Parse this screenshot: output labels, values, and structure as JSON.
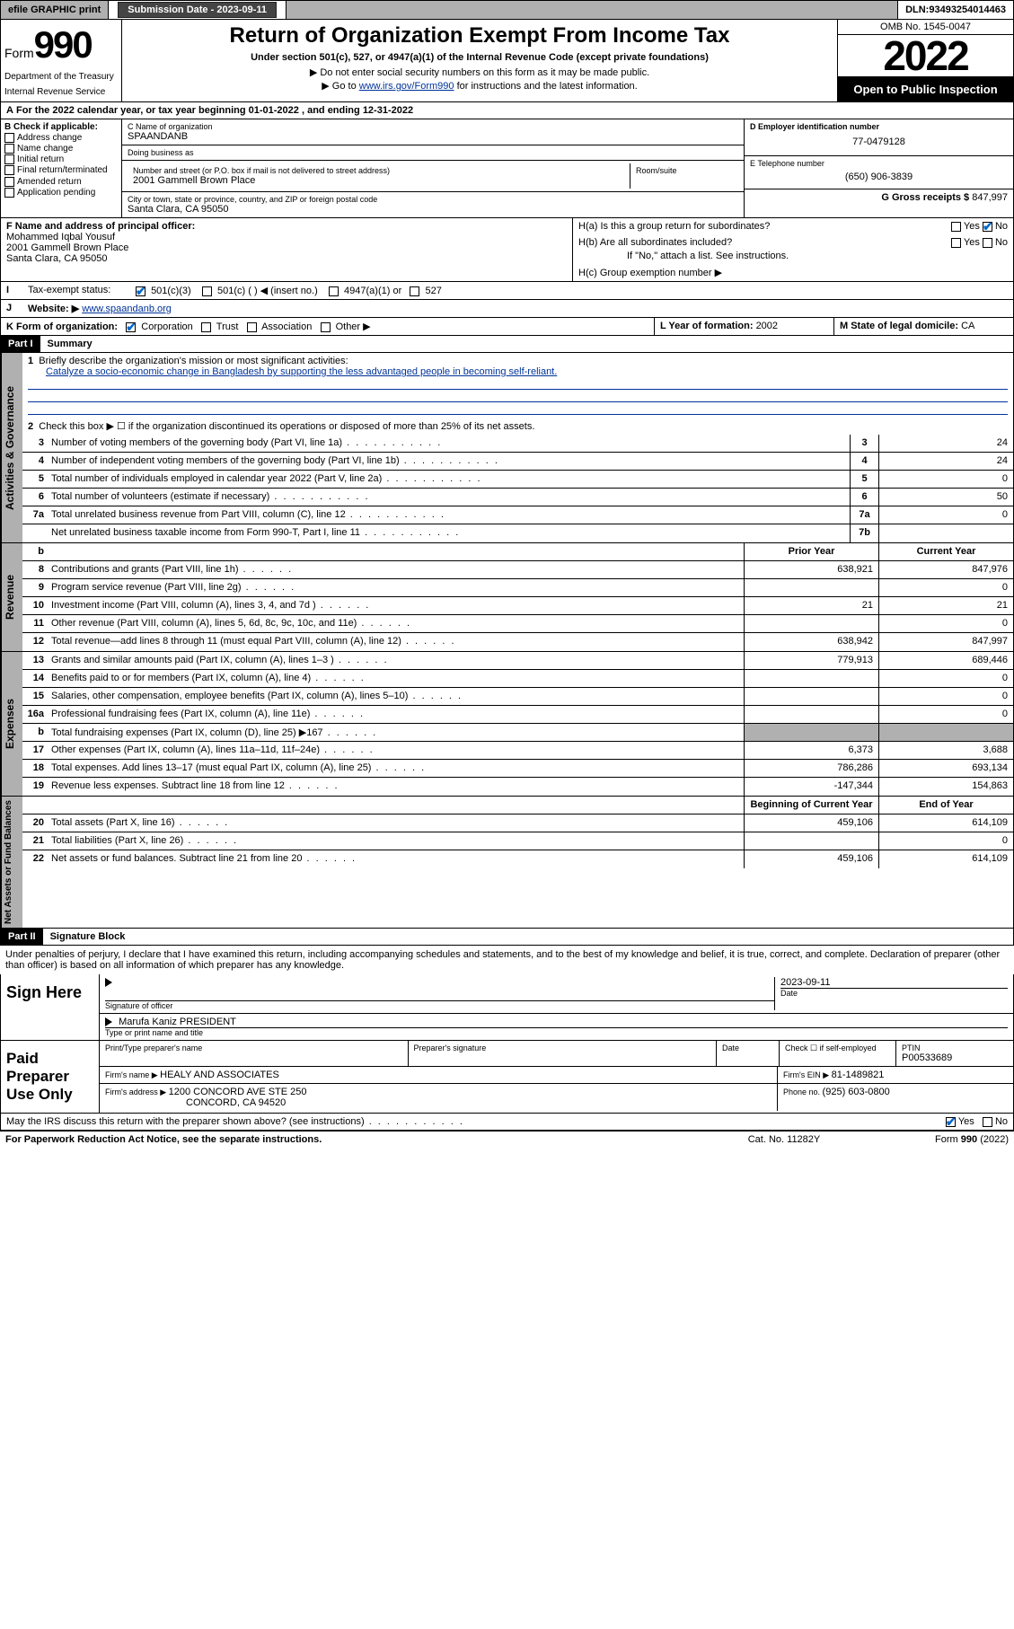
{
  "topbar": {
    "efile": "efile GRAPHIC print",
    "subdate_label": "Submission Date - ",
    "subdate": "2023-09-11",
    "dln_label": "DLN: ",
    "dln": "93493254014463"
  },
  "header": {
    "form_label": "Form",
    "form_num": "990",
    "dept": "Department of the Treasury",
    "irs": "Internal Revenue Service",
    "title": "Return of Organization Exempt From Income Tax",
    "sub1": "Under section 501(c), 527, or 4947(a)(1) of the Internal Revenue Code (except private foundations)",
    "sub2": "▶ Do not enter social security numbers on this form as it may be made public.",
    "sub3_pre": "▶ Go to ",
    "sub3_link": "www.irs.gov/Form990",
    "sub3_post": " for instructions and the latest information.",
    "omb": "OMB No. 1545-0047",
    "year": "2022",
    "inspect": "Open to Public Inspection"
  },
  "line_a": {
    "text": "For the 2022 calendar year, or tax year beginning ",
    "begin": "01-01-2022",
    "mid": " , and ending ",
    "end": "12-31-2022"
  },
  "col_b": {
    "header": "B Check if applicable:",
    "items": [
      "Address change",
      "Name change",
      "Initial return",
      "Final return/terminated",
      "Amended return",
      "Application pending"
    ]
  },
  "org": {
    "name_label": "C Name of organization",
    "name": "SPAANDANB",
    "dba_label": "Doing business as",
    "dba": "",
    "addr_label": "Number and street (or P.O. box if mail is not delivered to street address)",
    "room_label": "Room/suite",
    "addr": "2001 Gammell Brown Place",
    "city_label": "City or town, state or province, country, and ZIP or foreign postal code",
    "city": "Santa Clara, CA  95050"
  },
  "right": {
    "ein_label": "D Employer identification number",
    "ein": "77-0479128",
    "tel_label": "E Telephone number",
    "tel": "(650) 906-3839",
    "gross_label": "G Gross receipts $ ",
    "gross": "847,997"
  },
  "officer": {
    "label": "F  Name and address of principal officer:",
    "name": "Mohammed Iqbal Yousuf",
    "addr1": "2001 Gammell Brown Place",
    "addr2": "Santa Clara, CA  95050"
  },
  "h": {
    "a_label": "H(a)  Is this a group return for subordinates?",
    "b_label": "H(b)  Are all subordinates included?",
    "note": "If \"No,\" attach a list. See instructions.",
    "c_label": "H(c)  Group exemption number ▶",
    "yes": "Yes",
    "no": "No"
  },
  "tax_status": {
    "label": "Tax-exempt status:",
    "opts": [
      "501(c)(3)",
      "501(c) (  ) ◀ (insert no.)",
      "4947(a)(1) or",
      "527"
    ]
  },
  "website": {
    "label": "Website: ▶ ",
    "url": "www.spaandanb.org"
  },
  "k": {
    "label": "K Form of organization:",
    "opts": [
      "Corporation",
      "Trust",
      "Association",
      "Other ▶"
    ]
  },
  "l": {
    "label": "L Year of formation: ",
    "val": "2002"
  },
  "m": {
    "label": "M State of legal domicile: ",
    "val": "CA"
  },
  "part1": {
    "hdr": "Part I",
    "title": "Summary"
  },
  "summary": {
    "l1_label": "Briefly describe the organization's mission or most significant activities:",
    "l1_text": "Catalyze a socio-economic change in Bangladesh by supporting the less advantaged people in becoming self-reliant.",
    "l2": "Check this box ▶ ☐  if the organization discontinued its operations or disposed of more than 25% of its net assets.",
    "rows": [
      {
        "n": "3",
        "t": "Number of voting members of the governing body (Part VI, line 1a)",
        "box": "3",
        "v": "24"
      },
      {
        "n": "4",
        "t": "Number of independent voting members of the governing body (Part VI, line 1b)",
        "box": "4",
        "v": "24"
      },
      {
        "n": "5",
        "t": "Total number of individuals employed in calendar year 2022 (Part V, line 2a)",
        "box": "5",
        "v": "0"
      },
      {
        "n": "6",
        "t": "Total number of volunteers (estimate if necessary)",
        "box": "6",
        "v": "50"
      },
      {
        "n": "7a",
        "t": "Total unrelated business revenue from Part VIII, column (C), line 12",
        "box": "7a",
        "v": "0"
      },
      {
        "n": "",
        "t": "Net unrelated business taxable income from Form 990-T, Part I, line 11",
        "box": "7b",
        "v": ""
      }
    ]
  },
  "col_hdrs": {
    "prior": "Prior Year",
    "current": "Current Year",
    "boy": "Beginning of Current Year",
    "eoy": "End of Year"
  },
  "revenue": [
    {
      "n": "8",
      "t": "Contributions and grants (Part VIII, line 1h)",
      "p": "638,921",
      "c": "847,976"
    },
    {
      "n": "9",
      "t": "Program service revenue (Part VIII, line 2g)",
      "p": "",
      "c": "0"
    },
    {
      "n": "10",
      "t": "Investment income (Part VIII, column (A), lines 3, 4, and 7d )",
      "p": "21",
      "c": "21"
    },
    {
      "n": "11",
      "t": "Other revenue (Part VIII, column (A), lines 5, 6d, 8c, 9c, 10c, and 11e)",
      "p": "",
      "c": "0"
    },
    {
      "n": "12",
      "t": "Total revenue—add lines 8 through 11 (must equal Part VIII, column (A), line 12)",
      "p": "638,942",
      "c": "847,997"
    }
  ],
  "expenses": [
    {
      "n": "13",
      "t": "Grants and similar amounts paid (Part IX, column (A), lines 1–3 )",
      "p": "779,913",
      "c": "689,446"
    },
    {
      "n": "14",
      "t": "Benefits paid to or for members (Part IX, column (A), line 4)",
      "p": "",
      "c": "0"
    },
    {
      "n": "15",
      "t": "Salaries, other compensation, employee benefits (Part IX, column (A), lines 5–10)",
      "p": "",
      "c": "0"
    },
    {
      "n": "16a",
      "t": "Professional fundraising fees (Part IX, column (A), line 11e)",
      "p": "",
      "c": "0"
    },
    {
      "n": "b",
      "t": "Total fundraising expenses (Part IX, column (D), line 25) ▶167",
      "p": "shade",
      "c": "shade"
    },
    {
      "n": "17",
      "t": "Other expenses (Part IX, column (A), lines 11a–11d, 11f–24e)",
      "p": "6,373",
      "c": "3,688"
    },
    {
      "n": "18",
      "t": "Total expenses. Add lines 13–17 (must equal Part IX, column (A), line 25)",
      "p": "786,286",
      "c": "693,134"
    },
    {
      "n": "19",
      "t": "Revenue less expenses. Subtract line 18 from line 12",
      "p": "-147,344",
      "c": "154,863"
    }
  ],
  "netassets": [
    {
      "n": "20",
      "t": "Total assets (Part X, line 16)",
      "p": "459,106",
      "c": "614,109"
    },
    {
      "n": "21",
      "t": "Total liabilities (Part X, line 26)",
      "p": "",
      "c": "0"
    },
    {
      "n": "22",
      "t": "Net assets or fund balances. Subtract line 21 from line 20",
      "p": "459,106",
      "c": "614,109"
    }
  ],
  "vtabs": {
    "gov": "Activities & Governance",
    "rev": "Revenue",
    "exp": "Expenses",
    "net": "Net Assets or Fund Balances"
  },
  "part2": {
    "hdr": "Part II",
    "title": "Signature Block"
  },
  "perjury": "Under penalties of perjury, I declare that I have examined this return, including accompanying schedules and statements, and to the best of my knowledge and belief, it is true, correct, and complete. Declaration of preparer (other than officer) is based on all information of which preparer has any knowledge.",
  "sign": {
    "here": "Sign Here",
    "sig_label": "Signature of officer",
    "date_label": "Date",
    "date": "2023-09-11",
    "name": "Marufa Kaniz  PRESIDENT",
    "name_label": "Type or print name and title"
  },
  "preparer": {
    "label": "Paid Preparer Use Only",
    "h1": "Print/Type preparer's name",
    "h2": "Preparer's signature",
    "h3": "Date",
    "h4_pre": "Check ☐ if self-employed",
    "h5": "PTIN",
    "ptin": "P00533689",
    "firm_label": "Firm's name   ▶ ",
    "firm": "HEALY AND ASSOCIATES",
    "ein_label": "Firm's EIN ▶ ",
    "ein": "81-1489821",
    "addr_label": "Firm's address ▶ ",
    "addr1": "1200 CONCORD AVE STE 250",
    "addr2": "CONCORD, CA  94520",
    "phone_label": "Phone no. ",
    "phone": "(925) 603-0800"
  },
  "discuss": {
    "text": "May the IRS discuss this return with the preparer shown above? (see instructions)",
    "yes": "Yes",
    "no": "No"
  },
  "footer": {
    "left": "For Paperwork Reduction Act Notice, see the separate instructions.",
    "mid": "Cat. No. 11282Y",
    "right": "Form 990 (2022)"
  },
  "labels": {
    "i": "I",
    "j": "J",
    "a": "A",
    "b": "b"
  }
}
